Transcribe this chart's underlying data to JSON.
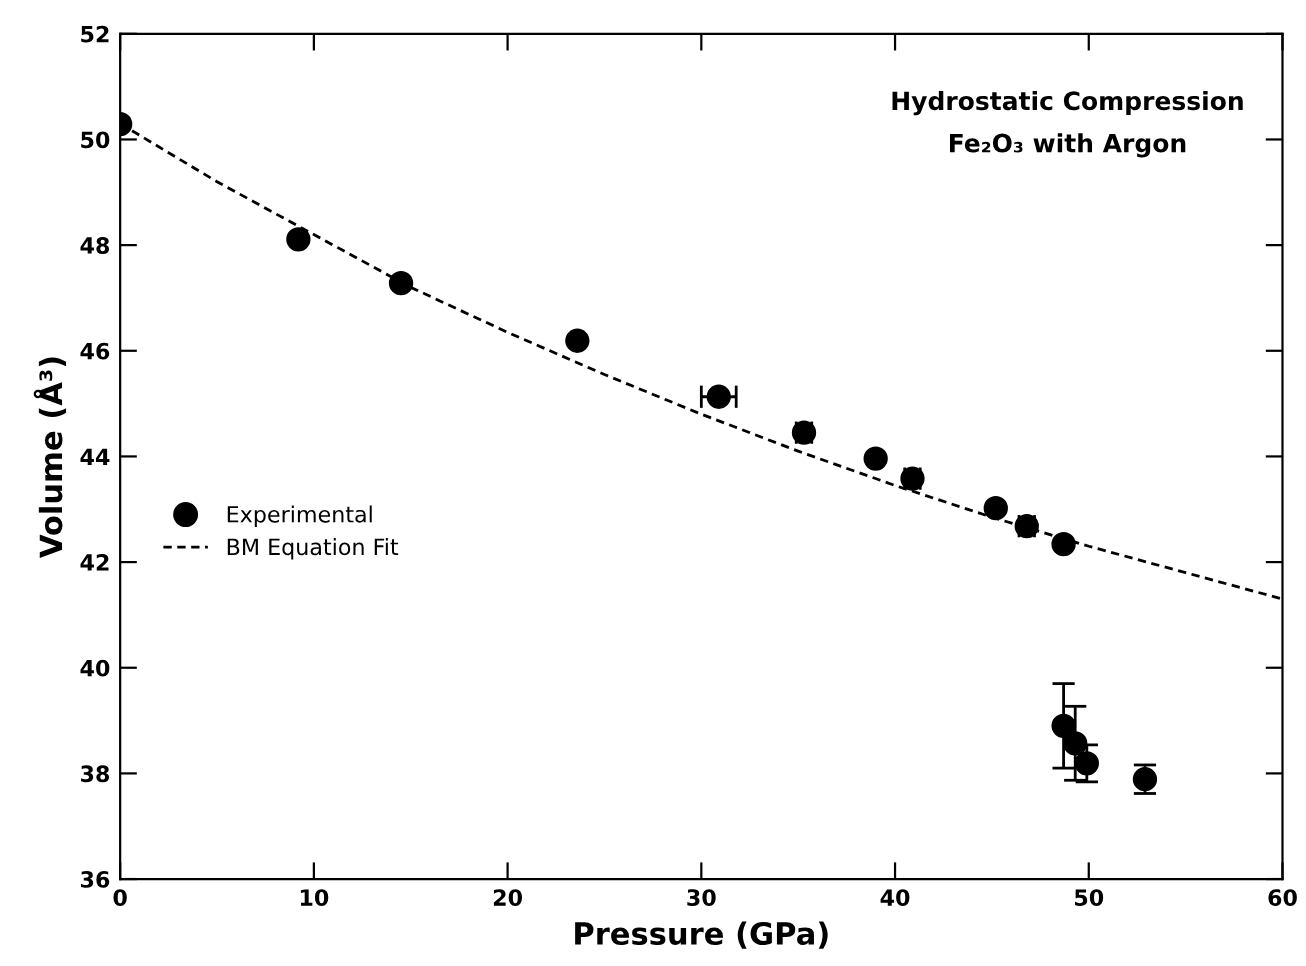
{
  "chart_data": {
    "type": "scatter",
    "title": "Hydrostatic Compression",
    "subtitle": "Fe₂O₃ with Argon",
    "xlabel": "Pressure (GPa)",
    "ylabel": "Volume (Å³)",
    "xlim": [
      0,
      60
    ],
    "ylim": [
      36,
      52
    ],
    "xticks": [
      0,
      10,
      20,
      30,
      40,
      50,
      60
    ],
    "yticks": [
      36,
      38,
      40,
      42,
      44,
      46,
      48,
      50,
      52
    ],
    "grid": false,
    "legend": "left",
    "series": [
      {
        "name": "Experimental",
        "color": "#000000",
        "marker": "circle",
        "x": [
          0,
          9.2,
          14.5,
          23.6,
          30.9,
          35.3,
          39.0,
          40.9,
          45.2,
          46.8,
          48.7,
          48.7,
          49.3,
          49.9,
          52.9
        ],
        "values": [
          50.29,
          48.11,
          47.28,
          46.19,
          45.13,
          44.45,
          43.96,
          43.58,
          43.02,
          42.68,
          42.34,
          38.9,
          38.57,
          38.19,
          37.89
        ],
        "errors": [
          null,
          null,
          null,
          null,
          null,
          null,
          null,
          null,
          null,
          null,
          null,
          0.8,
          0.7,
          0.35,
          0.27
        ],
        "xerrors": [
          null,
          null,
          null,
          null,
          0.9,
          0.4,
          null,
          0.4,
          null,
          0.4,
          null,
          null,
          null,
          null,
          null
        ]
      },
      {
        "name": "BM Equation Fit",
        "type": "line",
        "color": "#000000",
        "line_style": "dashed",
        "marker": "none",
        "x": [
          0,
          5,
          10,
          15,
          20,
          25,
          30,
          35,
          40,
          45,
          50,
          55,
          60
        ],
        "values": [
          50.3,
          49.2,
          48.2,
          47.2,
          46.35,
          45.55,
          44.8,
          44.1,
          43.45,
          42.85,
          42.3,
          41.8,
          41.3
        ]
      }
    ]
  }
}
